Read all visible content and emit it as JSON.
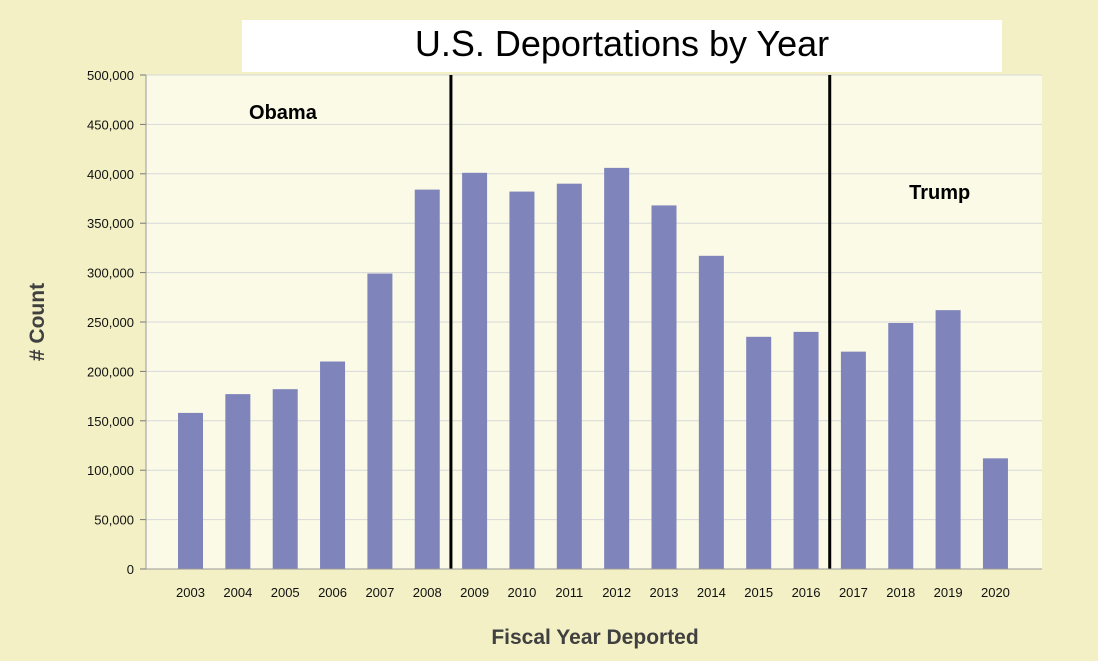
{
  "chart_data": {
    "type": "bar",
    "title": "U.S. Deportations by Year",
    "xlabel": "Fiscal Year Deported",
    "ylabel": "# Count",
    "categories": [
      "2003",
      "2004",
      "2005",
      "2006",
      "2007",
      "2008",
      "2009",
      "2010",
      "2011",
      "2012",
      "2013",
      "2014",
      "2015",
      "2016",
      "2017",
      "2018",
      "2019",
      "2020"
    ],
    "values": [
      158000,
      177000,
      182000,
      210000,
      299000,
      384000,
      401000,
      382000,
      390000,
      406000,
      368000,
      317000,
      235000,
      240000,
      220000,
      249000,
      262000,
      112000
    ],
    "ylim": [
      0,
      500000
    ],
    "yticks": [
      "0",
      "50,000",
      "100,000",
      "150,000",
      "200,000",
      "250,000",
      "300,000",
      "350,000",
      "400,000",
      "450,000",
      "500,000"
    ],
    "grid": true,
    "annotations": [
      {
        "text": "Obama",
        "after_category": "2008"
      },
      {
        "text": "Trump",
        "after_category": "2016"
      }
    ],
    "colors": {
      "bar": "#7f84bb",
      "background": "#fafae6",
      "outer_background": "#f2f0c4",
      "gridline": "#d8d8d8",
      "divider": "#000000"
    }
  }
}
